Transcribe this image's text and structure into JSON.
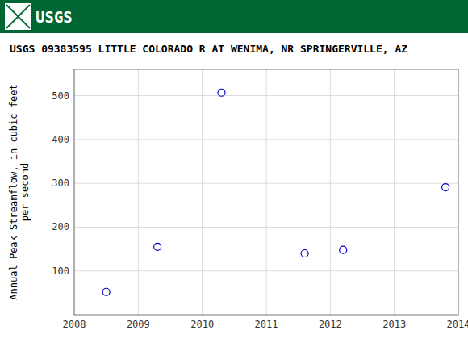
{
  "chart_data": {
    "type": "scatter",
    "title": "USGS 09383595 LITTLE COLORADO R AT WENIMA, NR SPRINGERVILLE, AZ",
    "annotations": [
      "USGS"
    ],
    "ylabel": "Annual Peak Streamflow, in cubic feet\nper second",
    "x": [
      2008.5,
      2009.3,
      2010.3,
      2011.6,
      2012.2,
      2013.8
    ],
    "values": [
      52,
      155,
      507,
      140,
      148,
      291
    ],
    "xlim": [
      2008,
      2014
    ],
    "ylim": [
      0,
      560
    ],
    "xticks": [
      2008,
      2009,
      2010,
      2011,
      2012,
      2013,
      2014
    ],
    "yticks": [
      100,
      200,
      300,
      400,
      500
    ],
    "color": "#0000cc",
    "marker": "circle",
    "grid": true
  }
}
